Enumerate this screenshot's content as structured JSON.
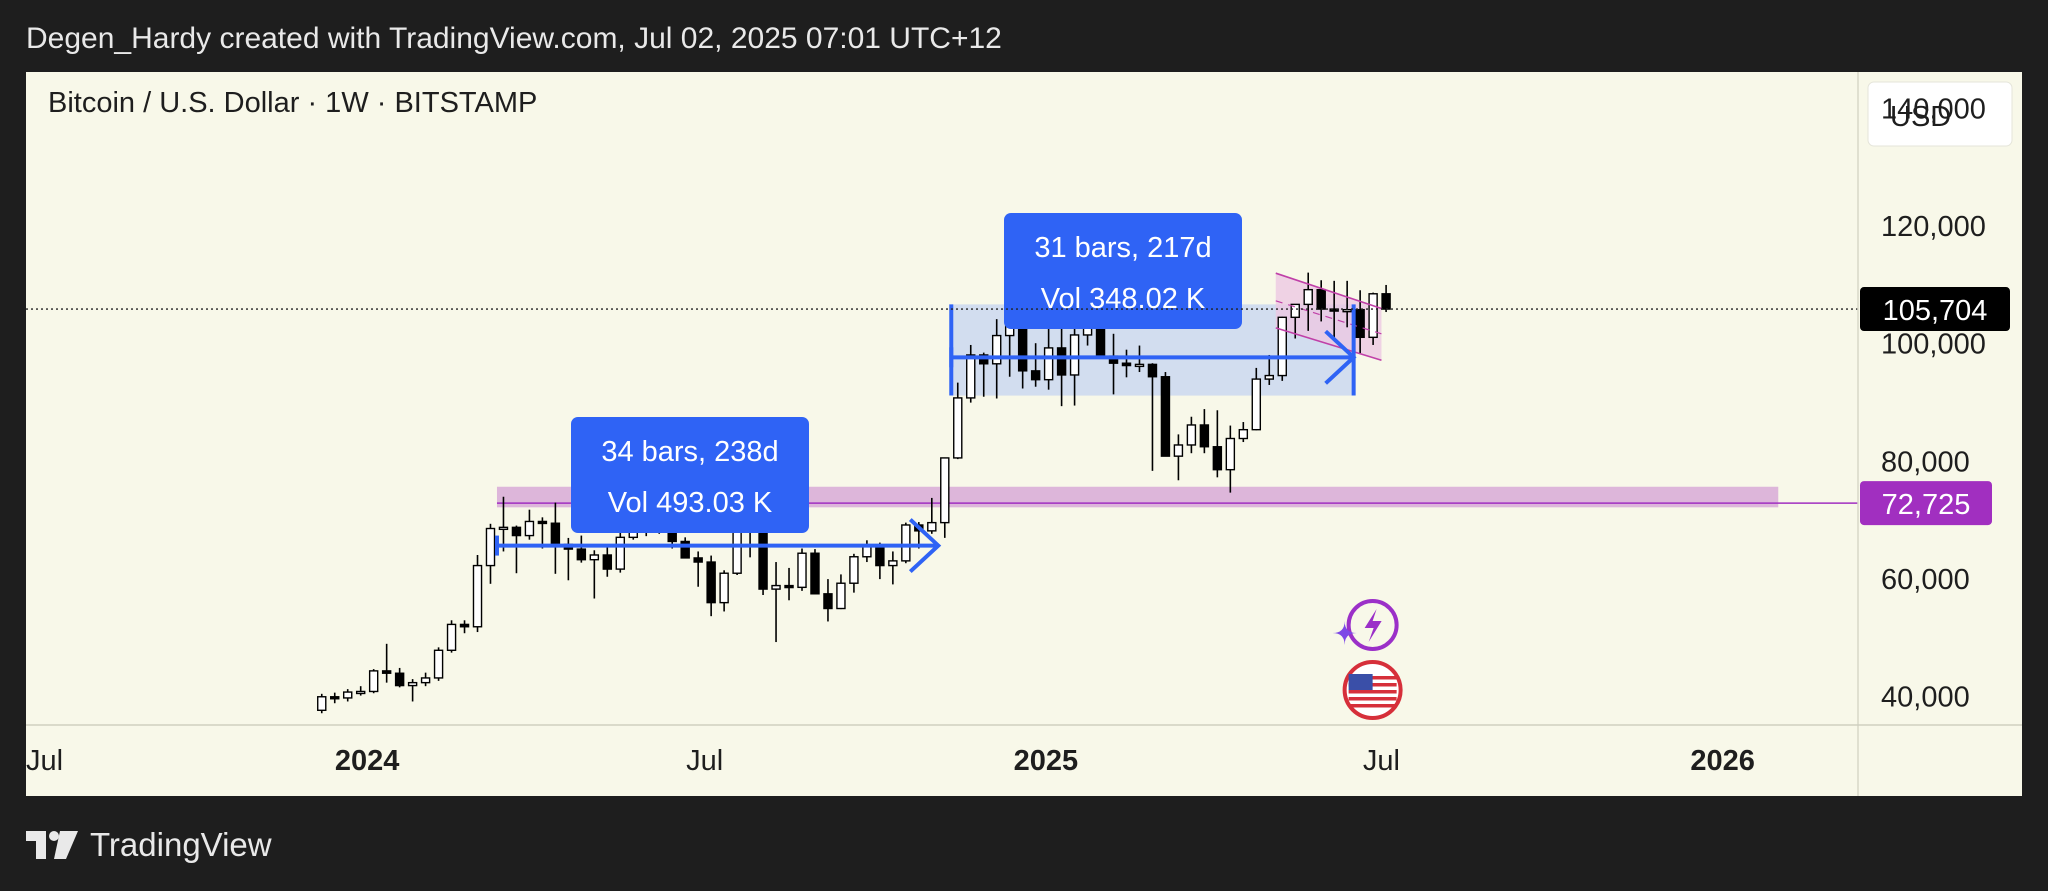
{
  "header": {
    "caption": "Degen_Hardy created with TradingView.com, Jul 02, 2025 07:01 UTC+12"
  },
  "footer": {
    "brand": "TradingView"
  },
  "colors": {
    "background": "#1e1e1e",
    "chart_bg": "#f8f8e9",
    "accent_blue": "#2f63f5",
    "support_purple": "#a12fc0",
    "zone_pink": "#ddb6da",
    "range_fill": "#cbd8f0",
    "candle_up": "#ffffff",
    "candle_down": "#000000"
  },
  "chart_data": {
    "type": "candlestick",
    "title": "Bitcoin / U.S. Dollar · 1W · BITSTAMP",
    "currency": "USD",
    "y_ticks": [
      "140,000",
      "120,000",
      "100,000",
      "80,000",
      "60,000",
      "40,000"
    ],
    "y_tick_values": [
      140000,
      120000,
      100000,
      80000,
      60000,
      40000
    ],
    "ylim": [
      35000,
      146000
    ],
    "x_ticks": [
      "Jul",
      "2024",
      "Jul",
      "2025",
      "Jul",
      "2026"
    ],
    "x_tick_dates": [
      "2023-07-01",
      "2024-01-01",
      "2024-07-01",
      "2025-01-01",
      "2025-07-01",
      "2026-01-01"
    ],
    "xlim": [
      "2023-07-01",
      "2026-03-15"
    ],
    "last_price": {
      "label": "105,704",
      "value": 105704
    },
    "support": {
      "label": "72,725",
      "value": 72725
    },
    "support_zone": {
      "low": 72000,
      "high": 75500,
      "start": "2024-03-11",
      "end": "2026-01-31"
    },
    "ranges": [
      {
        "label_line1": "34 bars, 238d",
        "label_line2": "Vol 493.03 K",
        "start": "2024-03-11",
        "end": "2024-11-04",
        "price": 65500,
        "color": "#2f63f5"
      },
      {
        "label_line1": "31 bars, 217d",
        "label_line2": "Vol 348.02 K",
        "start": "2024-11-11",
        "end": "2025-06-16",
        "low": 91000,
        "high": 106500,
        "price": 97500,
        "color": "#2f63f5"
      }
    ],
    "channel": {
      "start": "2025-05-05",
      "end": "2025-07-01",
      "upper": [
        111800,
        105800
      ],
      "lower": [
        102500,
        97000
      ],
      "mid": [
        107100,
        101500
      ]
    },
    "event_icons": [
      "lightning-icon",
      "us-flag-icon"
    ],
    "candles": [
      [
        "2023-12-04",
        37500,
        40300,
        37000,
        39800
      ],
      [
        "2023-12-11",
        39800,
        40500,
        38700,
        39600
      ],
      [
        "2023-12-18",
        39600,
        41100,
        39000,
        40600
      ],
      [
        "2023-12-25",
        40600,
        41600,
        40000,
        40700
      ],
      [
        "2024-01-01",
        40700,
        44500,
        40400,
        44200
      ],
      [
        "2024-01-08",
        44200,
        48800,
        42200,
        43800
      ],
      [
        "2024-01-15",
        43800,
        44700,
        41400,
        41700
      ],
      [
        "2024-01-22",
        41700,
        42800,
        39000,
        42200
      ],
      [
        "2024-01-29",
        42200,
        43900,
        41600,
        43000
      ],
      [
        "2024-02-05",
        43000,
        48200,
        42500,
        47700
      ],
      [
        "2024-02-12",
        47700,
        52800,
        47300,
        52100
      ],
      [
        "2024-02-19",
        52100,
        52800,
        50600,
        51700
      ],
      [
        "2024-02-26",
        51700,
        63900,
        50800,
        62100
      ],
      [
        "2024-03-04",
        62100,
        69200,
        59000,
        68400
      ],
      [
        "2024-03-11",
        68400,
        73800,
        64500,
        68600
      ],
      [
        "2024-03-18",
        68600,
        68900,
        60800,
        67200
      ],
      [
        "2024-03-25",
        67200,
        71600,
        66500,
        69600
      ],
      [
        "2024-04-01",
        69600,
        70300,
        65000,
        69300
      ],
      [
        "2024-04-08",
        69300,
        72800,
        60700,
        65700
      ],
      [
        "2024-04-15",
        65700,
        66800,
        59600,
        64900
      ],
      [
        "2024-04-22",
        64900,
        67200,
        62600,
        63100
      ],
      [
        "2024-04-29",
        63100,
        64700,
        56500,
        63900
      ],
      [
        "2024-05-06",
        63900,
        65500,
        60200,
        61500
      ],
      [
        "2024-05-13",
        61500,
        67700,
        60900,
        66900
      ],
      [
        "2024-05-20",
        66900,
        71900,
        66500,
        69300
      ],
      [
        "2024-05-27",
        69300,
        70600,
        67100,
        67800
      ],
      [
        "2024-06-03",
        67800,
        71900,
        67500,
        69700
      ],
      [
        "2024-06-10",
        69700,
        70200,
        65000,
        66200
      ],
      [
        "2024-06-17",
        66200,
        66900,
        63300,
        63400
      ],
      [
        "2024-06-24",
        63400,
        64500,
        58500,
        62700
      ],
      [
        "2024-07-01",
        62700,
        63800,
        53500,
        55800
      ],
      [
        "2024-07-08",
        55800,
        61300,
        54300,
        60800
      ],
      [
        "2024-07-15",
        60800,
        68400,
        60500,
        68100
      ],
      [
        "2024-07-22",
        68100,
        69300,
        63500,
        68200
      ],
      [
        "2024-07-29",
        68200,
        70000,
        57100,
        58100
      ],
      [
        "2024-08-05",
        58100,
        62700,
        49100,
        58700
      ],
      [
        "2024-08-12",
        58700,
        61700,
        56200,
        58400
      ],
      [
        "2024-08-19",
        58400,
        65000,
        57800,
        64200
      ],
      [
        "2024-08-26",
        64200,
        64900,
        57200,
        57300
      ],
      [
        "2024-09-02",
        57300,
        59800,
        52600,
        54800
      ],
      [
        "2024-09-09",
        54800,
        60600,
        54700,
        59100
      ],
      [
        "2024-09-16",
        59100,
        64100,
        57500,
        63600
      ],
      [
        "2024-09-23",
        63600,
        66400,
        62700,
        65600
      ],
      [
        "2024-09-30",
        65600,
        66000,
        59800,
        62100
      ],
      [
        "2024-10-07",
        62100,
        64500,
        58900,
        62900
      ],
      [
        "2024-10-14",
        62900,
        69400,
        62500,
        69000
      ],
      [
        "2024-10-21",
        69000,
        69500,
        65000,
        68000
      ],
      [
        "2024-10-28",
        68000,
        73600,
        67500,
        69400
      ],
      [
        "2024-11-04",
        69400,
        80300,
        66800,
        80400
      ],
      [
        "2024-11-11",
        80400,
        93200,
        80200,
        90600
      ],
      [
        "2024-11-18",
        90600,
        99600,
        89800,
        97900
      ],
      [
        "2024-11-25",
        97900,
        98300,
        90800,
        96400
      ],
      [
        "2024-12-02",
        96400,
        104000,
        90500,
        101200
      ],
      [
        "2024-12-09",
        101200,
        105000,
        94200,
        104500
      ],
      [
        "2024-12-16",
        104500,
        108300,
        92200,
        95200
      ],
      [
        "2024-12-23",
        95200,
        99900,
        92500,
        93700
      ],
      [
        "2024-12-30",
        93700,
        102500,
        92000,
        99100
      ],
      [
        "2025-01-06",
        99100,
        102700,
        89200,
        94500
      ],
      [
        "2025-01-13",
        94500,
        106000,
        89300,
        101300
      ],
      [
        "2025-01-20",
        101300,
        109500,
        99500,
        104700
      ],
      [
        "2025-01-27",
        104700,
        106500,
        97800,
        97700
      ],
      [
        "2025-02-03",
        97700,
        101500,
        91200,
        96500
      ],
      [
        "2025-02-10",
        96500,
        98800,
        94100,
        96100
      ],
      [
        "2025-02-17",
        96100,
        99500,
        95000,
        96300
      ],
      [
        "2025-02-24",
        96300,
        96500,
        78200,
        94200
      ],
      [
        "2025-03-03",
        94200,
        95000,
        81400,
        80700
      ],
      [
        "2025-03-10",
        80700,
        84400,
        76600,
        82600
      ],
      [
        "2025-03-17",
        82600,
        87400,
        81200,
        86000
      ],
      [
        "2025-03-24",
        86000,
        88700,
        81200,
        82300
      ],
      [
        "2025-03-31",
        82300,
        88500,
        77100,
        78400
      ],
      [
        "2025-04-07",
        78400,
        85900,
        74500,
        83700
      ],
      [
        "2025-04-14",
        83700,
        86500,
        83100,
        85200
      ],
      [
        "2025-04-21",
        85200,
        95700,
        85100,
        93800
      ],
      [
        "2025-04-28",
        93800,
        97900,
        92800,
        94400
      ],
      [
        "2025-05-05",
        94400,
        104400,
        93500,
        104300
      ],
      [
        "2025-05-12",
        104300,
        105800,
        100700,
        106500
      ],
      [
        "2025-05-19",
        106500,
        111900,
        102000,
        109000
      ],
      [
        "2025-05-26",
        109000,
        110600,
        103600,
        105700
      ],
      [
        "2025-06-02",
        105700,
        110500,
        100400,
        105600
      ],
      [
        "2025-06-09",
        105600,
        110500,
        102600,
        105600
      ],
      [
        "2025-06-16",
        105600,
        108900,
        98200,
        100900
      ],
      [
        "2025-06-23",
        100900,
        108500,
        99600,
        108300
      ],
      [
        "2025-06-30",
        108300,
        109800,
        105200,
        105700
      ]
    ]
  }
}
